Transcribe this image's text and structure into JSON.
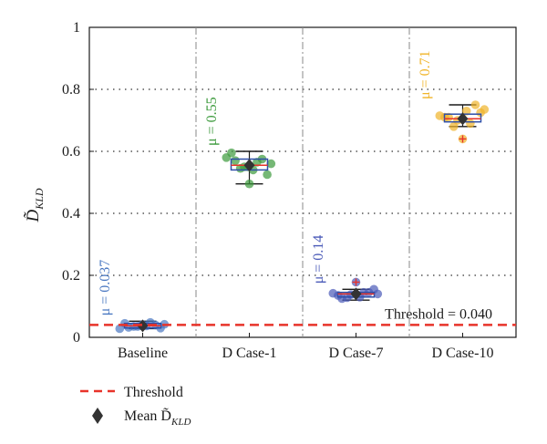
{
  "chart_data": {
    "type": "box",
    "ylabel": "D̃",
    "ylabel_sub": "KLD",
    "ylim": [
      0,
      1
    ],
    "yticks": [
      "0",
      "0.2",
      "0.4",
      "0.6",
      "0.8",
      "1"
    ],
    "categories": [
      "Baseline",
      "D Case-1",
      "D Case-7",
      "D Case-10"
    ],
    "grid": "dotted horizontal",
    "threshold": {
      "value": 0.04,
      "label": "Threshold = 0.040",
      "color": "#e8332a"
    },
    "groups": [
      {
        "category": "Baseline",
        "color": "#4a78c2",
        "mu_label": "μ = 0.037",
        "mean": 0.037,
        "q1": 0.03,
        "median": 0.037,
        "q3": 0.045,
        "whisker_low": 0.028,
        "whisker_high": 0.052,
        "outliers": [],
        "points": [
          0.028,
          0.032,
          0.035,
          0.037,
          0.04,
          0.042,
          0.045,
          0.048,
          0.035,
          0.03,
          0.041,
          0.038
        ]
      },
      {
        "category": "D Case-1",
        "color": "#3c9a3c",
        "mu_label": "μ = 0.55",
        "mean": 0.555,
        "q1": 0.54,
        "median": 0.555,
        "q3": 0.575,
        "whisker_low": 0.495,
        "whisker_high": 0.6,
        "outliers": [],
        "points": [
          0.58,
          0.57,
          0.55,
          0.54,
          0.575,
          0.56,
          0.595,
          0.565,
          0.545,
          0.525,
          0.495,
          0.55
        ]
      },
      {
        "category": "D Case-7",
        "color": "#4a5ab8",
        "mu_label": "μ = 0.14",
        "mean": 0.14,
        "q1": 0.13,
        "median": 0.14,
        "q3": 0.145,
        "whisker_low": 0.12,
        "whisker_high": 0.155,
        "outliers": [
          0.178
        ],
        "points": [
          0.142,
          0.125,
          0.138,
          0.13,
          0.145,
          0.14,
          0.135,
          0.145,
          0.128,
          0.155,
          0.178
        ]
      },
      {
        "category": "D Case-10",
        "color": "#f0b429",
        "mu_label": "μ = 0.71",
        "mean": 0.705,
        "q1": 0.695,
        "median": 0.705,
        "q3": 0.72,
        "whisker_low": 0.68,
        "whisker_high": 0.75,
        "outliers": [
          0.64
        ],
        "points": [
          0.715,
          0.71,
          0.7,
          0.73,
          0.75,
          0.735,
          0.71,
          0.69,
          0.68,
          0.725,
          0.64
        ]
      }
    ],
    "legend": [
      {
        "label": "Threshold",
        "marker": "dashed-line"
      },
      {
        "label": "Mean D̃",
        "sub": "KLD",
        "marker": "diamond"
      }
    ],
    "outlier_color": "#e8332a",
    "mean_marker_color": "#333333",
    "box_color": "#2f4fa8",
    "median_color": "#e8332a"
  }
}
